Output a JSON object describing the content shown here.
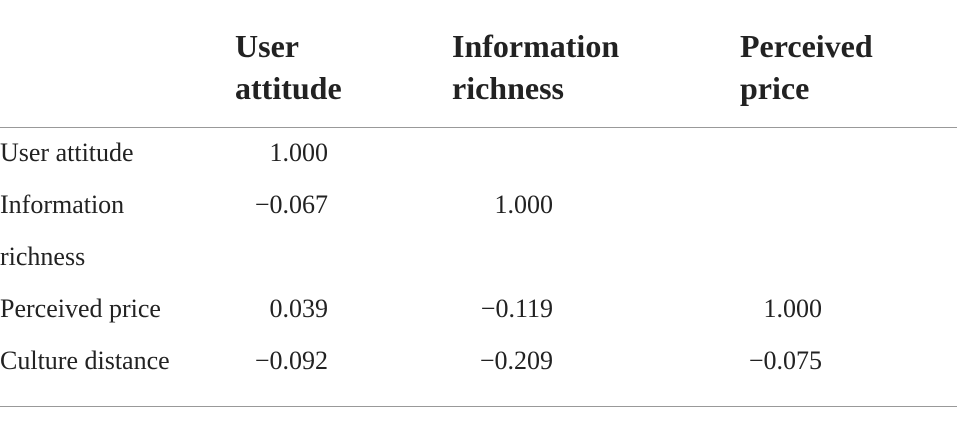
{
  "table": {
    "columns": [
      "User attitude",
      "Information richness",
      "Perceived price"
    ],
    "rows": [
      {
        "label": "User attitude",
        "values": [
          "1.000"
        ]
      },
      {
        "label": "Information richness",
        "values": [
          "−0.067",
          "1.000"
        ]
      },
      {
        "label": "Perceived price",
        "values": [
          "0.039",
          "−0.119",
          "1.000"
        ]
      },
      {
        "label": "Culture distance",
        "values": [
          "−0.092",
          "−0.209",
          "−0.075"
        ]
      }
    ]
  }
}
